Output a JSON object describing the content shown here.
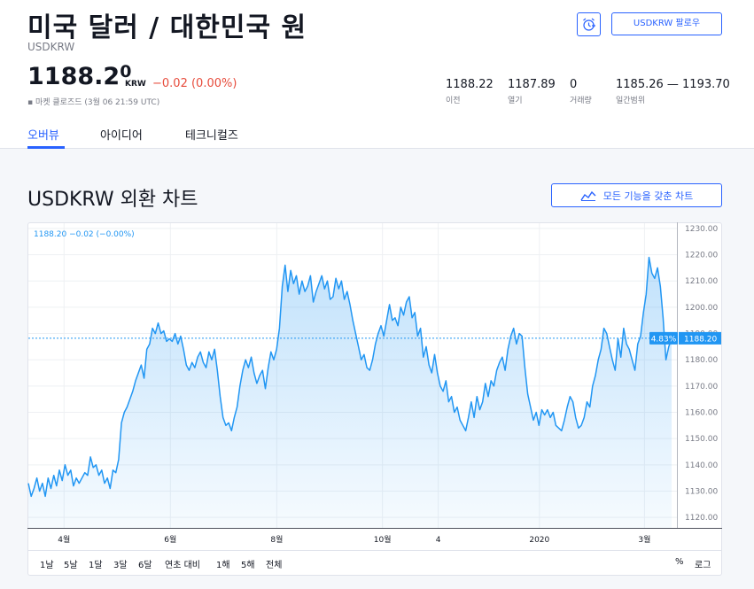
{
  "header": {
    "title": "미국 달러 / 대한민국 원",
    "ticker": "USDKRW",
    "price_main": "1188.2",
    "price_small": "0",
    "currency": "KRW",
    "change": "−0.02 (0.00%)",
    "market_status": "▪ 마켓 클로즈드 (3월 06 21:59 UTC)",
    "follow_label": "USDKRW 팔로우"
  },
  "stats": [
    {
      "value": "1188.22",
      "label": "이전"
    },
    {
      "value": "1187.89",
      "label": "열기"
    },
    {
      "value": "0",
      "label": "거래량"
    },
    {
      "value": "1185.26 — 1193.70",
      "label": "일간범위"
    }
  ],
  "tabs": [
    {
      "label": "오버뷰"
    },
    {
      "label": "아이디어"
    },
    {
      "label": "테크니컬즈"
    }
  ],
  "chart_section": {
    "title": "USDKRW 외환 차트",
    "fullchart_label": "모든 기능을 갖춘 차트",
    "legend": "1188.20  −0.02 (−0.00%)",
    "last_price_label": "1188.20",
    "pct_label": "4.83%"
  },
  "ranges": [
    "1날",
    "5날",
    "1달",
    "3달",
    "6달",
    "연초 대비",
    "1해",
    "5해",
    "전체"
  ],
  "scale_options": [
    "%",
    "로그"
  ],
  "colors": {
    "accent": "#2962ff",
    "line": "#2196f3",
    "negative": "#e74c3c"
  },
  "chart_data": {
    "type": "area",
    "x_tick_labels": [
      "4월",
      "6월",
      "8월",
      "10월",
      "4",
      "2020",
      "3월"
    ],
    "y_ticks": [
      1120,
      1130,
      1140,
      1150,
      1160,
      1170,
      1180,
      1190,
      1200,
      1210,
      1220,
      1230
    ],
    "ylim": [
      1116,
      1232
    ],
    "last_value": 1188.2,
    "values": [
      1133,
      1128,
      1131,
      1135,
      1130,
      1133,
      1128,
      1135,
      1131,
      1136,
      1132,
      1138,
      1134,
      1140,
      1136,
      1138,
      1132,
      1135,
      1133,
      1135,
      1137,
      1136,
      1143,
      1139,
      1140,
      1136,
      1138,
      1133,
      1135,
      1131,
      1138,
      1137,
      1142,
      1156,
      1160,
      1162,
      1165,
      1168,
      1172,
      1175,
      1178,
      1173,
      1184,
      1186,
      1192,
      1190,
      1194,
      1190,
      1191,
      1187,
      1188,
      1187,
      1190,
      1186,
      1189,
      1184,
      1178,
      1176,
      1179,
      1177,
      1181,
      1183,
      1179,
      1177,
      1183,
      1180,
      1184,
      1176,
      1166,
      1158,
      1155,
      1156,
      1153,
      1158,
      1162,
      1170,
      1176,
      1180,
      1177,
      1181,
      1175,
      1171,
      1174,
      1176,
      1169,
      1177,
      1183,
      1180,
      1184,
      1192,
      1208,
      1216,
      1206,
      1214,
      1209,
      1212,
      1205,
      1210,
      1206,
      1208,
      1212,
      1202,
      1206,
      1209,
      1212,
      1207,
      1210,
      1203,
      1204,
      1211,
      1207,
      1210,
      1203,
      1206,
      1201,
      1195,
      1190,
      1185,
      1180,
      1182,
      1177,
      1176,
      1180,
      1186,
      1190,
      1193,
      1189,
      1195,
      1201,
      1195,
      1196,
      1193,
      1200,
      1197,
      1202,
      1204,
      1196,
      1198,
      1189,
      1192,
      1181,
      1185,
      1178,
      1175,
      1182,
      1175,
      1170,
      1168,
      1172,
      1164,
      1166,
      1160,
      1162,
      1157,
      1155,
      1153,
      1158,
      1164,
      1158,
      1166,
      1161,
      1164,
      1171,
      1166,
      1172,
      1170,
      1176,
      1179,
      1181,
      1176,
      1184,
      1189,
      1192,
      1186,
      1190,
      1189,
      1177,
      1167,
      1162,
      1157,
      1160,
      1155,
      1161,
      1159,
      1161,
      1158,
      1160,
      1155,
      1154,
      1153,
      1157,
      1162,
      1166,
      1164,
      1158,
      1154,
      1155,
      1158,
      1164,
      1162,
      1170,
      1174,
      1180,
      1184,
      1192,
      1190,
      1185,
      1180,
      1176,
      1188,
      1181,
      1192,
      1186,
      1184,
      1180,
      1176,
      1186,
      1189,
      1198,
      1205,
      1219,
      1213,
      1211,
      1215,
      1208,
      1196,
      1180,
      1185,
      1188
    ]
  }
}
